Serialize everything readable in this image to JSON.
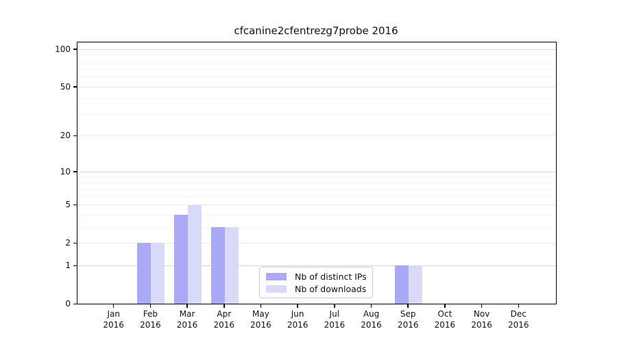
{
  "title": "cfcanine2cfentrezg7probe 2016",
  "chart_data": {
    "type": "bar",
    "title": "cfcanine2cfentrezg7probe 2016",
    "categories": [
      "Jan",
      "Feb",
      "Mar",
      "Apr",
      "May",
      "Jun",
      "Jul",
      "Aug",
      "Sep",
      "Oct",
      "Nov",
      "Dec"
    ],
    "category_year": "2016",
    "series": [
      {
        "name": "Nb of distinct IPs",
        "color": "#a9a9f5",
        "values": [
          0,
          2,
          4,
          3,
          0,
          0,
          0,
          0,
          1,
          0,
          0,
          0
        ]
      },
      {
        "name": "Nb of downloads",
        "color": "#d9d9f8",
        "values": [
          0,
          2,
          5,
          3,
          0,
          0,
          0,
          0,
          1,
          0,
          0,
          0
        ]
      }
    ],
    "yscale": "log1p",
    "ylim": [
      0,
      113
    ],
    "yticks": [
      0,
      1,
      2,
      5,
      10,
      20,
      50,
      100
    ],
    "grid_major": [
      1,
      10,
      100
    ],
    "grid_semi": [
      2,
      5,
      20,
      50
    ],
    "grid_minor": [
      3,
      4,
      6,
      7,
      8,
      9,
      30,
      40,
      60,
      70,
      80,
      90
    ],
    "legend_position": "bottom-center",
    "grid": true
  },
  "legend": {
    "items": [
      {
        "label": "Nb of distinct IPs",
        "color": "#a9a9f5"
      },
      {
        "label": "Nb of downloads",
        "color": "#d9d9f8"
      }
    ]
  }
}
